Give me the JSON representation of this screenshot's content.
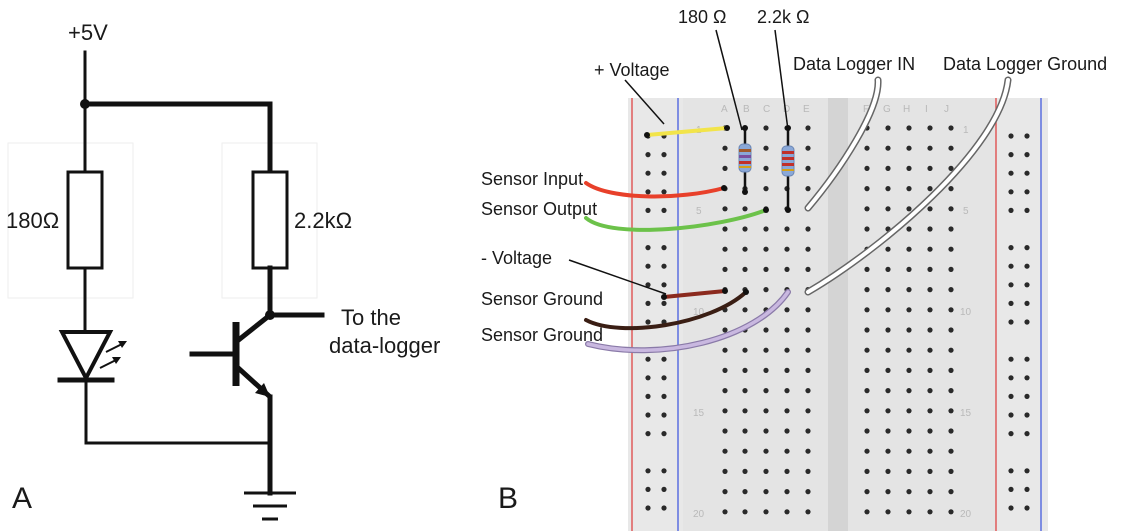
{
  "panel_a": {
    "supply_label": "+5V",
    "resistor_1_label": "180Ω",
    "resistor_2_label": "2.2kΩ",
    "output_label_line1": "To the",
    "output_label_line2": "data-logger",
    "panel_letter": "A"
  },
  "panel_b": {
    "panel_letter": "B",
    "resistor_1_label": "180 Ω",
    "resistor_2_label": "2.2k Ω",
    "callouts": {
      "plus_voltage": "+ Voltage",
      "data_logger_in": "Data Logger IN",
      "data_logger_ground": "Data Logger Ground",
      "sensor_input": "Sensor Input",
      "sensor_output": "Sensor Output",
      "minus_voltage": "- Voltage",
      "sensor_ground_1": "Sensor Ground",
      "sensor_ground_2": "Sensor Ground"
    },
    "column_letters_left": [
      "A",
      "B",
      "C",
      "D",
      "E"
    ],
    "column_letters_right": [
      "F",
      "G",
      "H",
      "I",
      "J"
    ],
    "row_numbers": [
      "1",
      "5",
      "10",
      "15",
      "20"
    ],
    "wire_colors": {
      "plus_voltage": "#f2e44a",
      "sensor_input": "#e8402a",
      "sensor_output": "#6cc24a",
      "minus_voltage": "#8b2a1e",
      "sensor_ground_1": "#3a1e14",
      "sensor_ground_2": "#c9b8e0",
      "data_logger": "#ffffff"
    },
    "rail_colors": {
      "positive": "#e05a5a",
      "negative": "#5a6fe0"
    }
  }
}
